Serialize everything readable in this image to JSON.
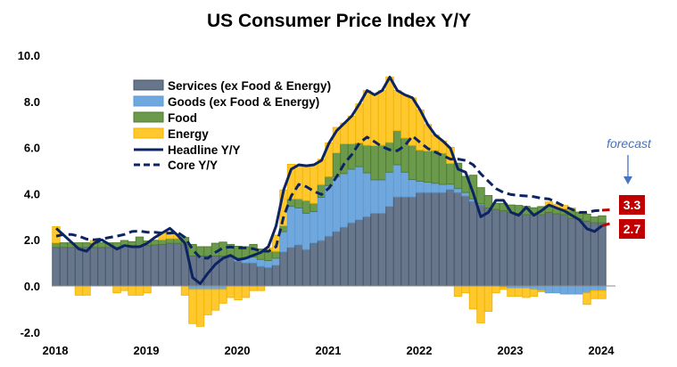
{
  "chart_data": {
    "type": "bar",
    "stacked": true,
    "title": "US Consumer Price Index Y/Y",
    "xlabel": "",
    "ylabel": "",
    "ylim": [
      -2,
      10
    ],
    "yticks": [
      "10.0",
      "8.0",
      "6.0",
      "4.0",
      "2.0",
      "0.0",
      "-2.0"
    ],
    "ytick_values": [
      10,
      8,
      6,
      4,
      2,
      0,
      -2
    ],
    "xtick_labels": [
      "2018",
      "2019",
      "2020",
      "2021",
      "2022",
      "2023",
      "2024"
    ],
    "xtick_index": [
      0,
      12,
      24,
      36,
      48,
      60,
      72
    ],
    "grid": false,
    "legend_placement": "upper-left inside plot",
    "series": [
      {
        "name": "Services (ex Food & Energy)",
        "kind": "bar",
        "color": "#67768a",
        "values": [
          1.67,
          1.67,
          1.67,
          1.67,
          1.67,
          1.67,
          1.67,
          1.67,
          1.67,
          1.67,
          1.67,
          1.72,
          1.75,
          1.78,
          1.8,
          1.85,
          1.85,
          1.8,
          1.3,
          1.3,
          1.3,
          1.3,
          1.3,
          1.3,
          1.07,
          1.0,
          1.0,
          0.85,
          0.8,
          0.9,
          1.48,
          1.67,
          1.78,
          1.58,
          1.87,
          1.97,
          2.16,
          2.36,
          2.55,
          2.74,
          2.87,
          3.0,
          3.15,
          3.15,
          3.45,
          3.86,
          3.86,
          3.86,
          4.05,
          4.05,
          4.05,
          4.05,
          4.18,
          4.05,
          3.9,
          3.67,
          3.51,
          3.38,
          3.32,
          3.26,
          3.19,
          3.13,
          3.09,
          3.09,
          3.09,
          3.19,
          3.13,
          3.09,
          2.93,
          2.9,
          2.81,
          2.74,
          2.74
        ]
      },
      {
        "name": "Goods (ex Food & Energy)",
        "kind": "bar",
        "color": "#70a8dd",
        "values": [
          0,
          0,
          0,
          0,
          0,
          0,
          0,
          0,
          0,
          0.1,
          0.05,
          0,
          0,
          0,
          0,
          0,
          0,
          0,
          -0.15,
          -0.15,
          -0.15,
          -0.15,
          -0.15,
          0,
          0.15,
          0.2,
          0.25,
          0.3,
          0.3,
          0.3,
          0.87,
          1.78,
          1.6,
          1.57,
          1.35,
          1.87,
          2.19,
          2.38,
          2.32,
          2.32,
          2.3,
          1.9,
          1.45,
          1.45,
          1.48,
          1.39,
          1.07,
          0.75,
          0.49,
          0.45,
          0.4,
          0.35,
          0.23,
          0.17,
          0.15,
          0.1,
          0.05,
          0,
          0,
          -0.05,
          -0.1,
          -0.1,
          -0.1,
          -0.15,
          -0.2,
          -0.3,
          -0.3,
          -0.35,
          -0.35,
          -0.35,
          -0.3,
          -0.2,
          -0.2
        ]
      },
      {
        "name": "Food",
        "kind": "bar",
        "color": "#6b9a4c",
        "values": [
          0.2,
          0.2,
          0.2,
          0.2,
          0.2,
          0.2,
          0.2,
          0.2,
          0.2,
          0.2,
          0.2,
          0.4,
          0.2,
          0.2,
          0.2,
          0.2,
          0.2,
          0.3,
          0.5,
          0.4,
          0.4,
          0.55,
          0.6,
          0.5,
          0.5,
          0.5,
          0.55,
          0.45,
          0.4,
          0.3,
          0.26,
          0.32,
          0.39,
          0.55,
          0.36,
          0.55,
          0.39,
          1.03,
          1.29,
          1.1,
          1.03,
          1.2,
          1.48,
          1.5,
          1.29,
          1.48,
          1.48,
          1.48,
          1.35,
          1.35,
          1.42,
          1.35,
          0.9,
          1.1,
          0.7,
          1.03,
          0.7,
          0.54,
          0.26,
          0.32,
          0.32,
          0.36,
          0.36,
          0.3,
          0.35,
          0.3,
          0.25,
          0.25,
          0.35,
          0.3,
          0.3,
          0.25,
          0.3
        ]
      },
      {
        "name": "Energy",
        "kind": "bar",
        "color": "#ffc82e",
        "values": [
          0.7,
          0,
          0,
          -0.4,
          -0.4,
          0.1,
          0,
          0,
          -0.3,
          -0.2,
          -0.4,
          -0.4,
          -0.3,
          0,
          0.3,
          0.3,
          0.2,
          -0.4,
          -1.48,
          -1.6,
          -1.1,
          -0.9,
          -0.6,
          -0.5,
          -0.6,
          -0.5,
          -0.2,
          -0.2,
          0.15,
          0.7,
          1.55,
          1.5,
          1.48,
          1.5,
          1.67,
          1.1,
          1.46,
          1.1,
          0.9,
          1.2,
          1.69,
          2.37,
          2.2,
          2.37,
          2.83,
          1.74,
          1.87,
          2.06,
          1.74,
          1.15,
          0.67,
          0.53,
          0.7,
          -0.45,
          -0.3,
          -1.0,
          -1.6,
          -1.1,
          -0.3,
          -0.1,
          -0.35,
          -0.35,
          -0.4,
          -0.3,
          -0.05,
          0.15,
          0.15,
          0.15,
          0.1,
          0,
          -0.5,
          -0.35,
          -0.35
        ]
      },
      {
        "name": "Headline Y/Y",
        "kind": "line",
        "style": "solid",
        "color": "#0c2461",
        "values": [
          2.5,
          2.2,
          1.9,
          1.6,
          1.5,
          1.85,
          2.0,
          1.8,
          1.6,
          1.75,
          1.7,
          1.7,
          1.85,
          2.1,
          2.3,
          2.5,
          2.2,
          1.84,
          0.36,
          0.1,
          0.55,
          0.94,
          1.2,
          1.33,
          1.13,
          1.2,
          1.33,
          1.45,
          1.71,
          2.6,
          4.16,
          5.06,
          5.25,
          5.21,
          5.25,
          5.44,
          6.2,
          6.73,
          7.05,
          7.37,
          7.89,
          8.47,
          8.28,
          8.47,
          9.05,
          8.47,
          8.28,
          8.15,
          7.63,
          7.0,
          6.54,
          6.28,
          5.96,
          5.06,
          4.93,
          4.03,
          3.0,
          3.19,
          3.71,
          3.71,
          3.19,
          3.06,
          3.41,
          3.06,
          3.26,
          3.51,
          3.38,
          3.26,
          3.06,
          2.87,
          2.48,
          2.36,
          2.61
        ],
        "forecast": 2.7,
        "forecast_label": "2.7"
      },
      {
        "name": "Core Y/Y",
        "kind": "line",
        "style": "dashed",
        "color": "#0c2461",
        "values": [
          2.16,
          2.23,
          2.23,
          2.16,
          2.03,
          2.0,
          2.03,
          2.1,
          2.16,
          2.23,
          2.36,
          2.38,
          2.33,
          2.33,
          2.29,
          2.29,
          2.33,
          2.1,
          1.58,
          1.22,
          1.2,
          1.45,
          1.65,
          1.69,
          1.65,
          1.65,
          1.61,
          1.52,
          1.5,
          1.7,
          3.0,
          3.9,
          4.4,
          4.3,
          4.1,
          3.96,
          4.25,
          4.74,
          5.3,
          5.7,
          6.2,
          6.45,
          6.25,
          6.03,
          5.9,
          5.86,
          6.09,
          6.5,
          6.22,
          5.96,
          5.8,
          5.65,
          5.5,
          5.5,
          5.44,
          5.25,
          4.86,
          4.54,
          4.22,
          4.05,
          3.96,
          3.92,
          3.9,
          3.87,
          3.8,
          3.77,
          3.62,
          3.45,
          3.32,
          3.19,
          3.19,
          3.26,
          3.28
        ],
        "forecast": 3.3,
        "forecast_label": "3.3"
      }
    ],
    "annotation": "forecast",
    "forecast_color": "#c00000"
  }
}
